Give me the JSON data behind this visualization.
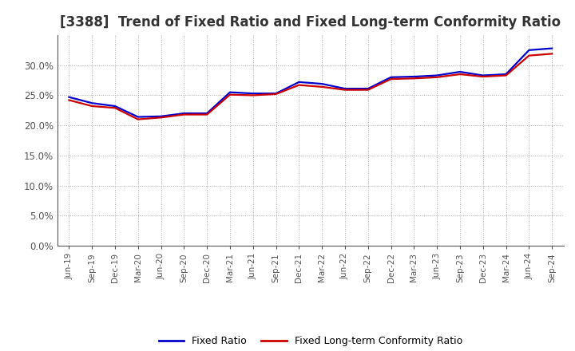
{
  "title": "[3388]  Trend of Fixed Ratio and Fixed Long-term Conformity Ratio",
  "title_fontsize": 12,
  "ylim": [
    0.0,
    0.35
  ],
  "yticks": [
    0.0,
    0.05,
    0.1,
    0.15,
    0.2,
    0.25,
    0.3
  ],
  "background_color": "#ffffff",
  "plot_bg_color": "#ffffff",
  "grid_color": "#aaaaaa",
  "legend_labels": [
    "Fixed Ratio",
    "Fixed Long-term Conformity Ratio"
  ],
  "line_colors": [
    "#0000cc",
    "#cc0000"
  ],
  "line_width": 1.6,
  "x_labels": [
    "Jun-19",
    "Sep-19",
    "Dec-19",
    "Mar-20",
    "Jun-20",
    "Sep-20",
    "Dec-20",
    "Mar-21",
    "Jun-21",
    "Sep-21",
    "Dec-21",
    "Mar-22",
    "Jun-22",
    "Sep-22",
    "Dec-22",
    "Mar-23",
    "Jun-23",
    "Sep-23",
    "Dec-23",
    "Mar-24",
    "Jun-24",
    "Sep-24"
  ],
  "fixed_ratio": [
    0.247,
    0.237,
    0.232,
    0.214,
    0.215,
    0.22,
    0.22,
    0.255,
    0.253,
    0.253,
    0.272,
    0.269,
    0.261,
    0.261,
    0.28,
    0.281,
    0.283,
    0.289,
    0.283,
    0.285,
    0.325,
    0.328
  ],
  "fixed_lt_ratio": [
    0.242,
    0.232,
    0.229,
    0.21,
    0.213,
    0.218,
    0.218,
    0.251,
    0.25,
    0.252,
    0.267,
    0.264,
    0.259,
    0.259,
    0.277,
    0.278,
    0.28,
    0.285,
    0.281,
    0.283,
    0.316,
    0.319
  ],
  "title_color": "#333333",
  "tick_color": "#555555",
  "spine_color": "#555555"
}
